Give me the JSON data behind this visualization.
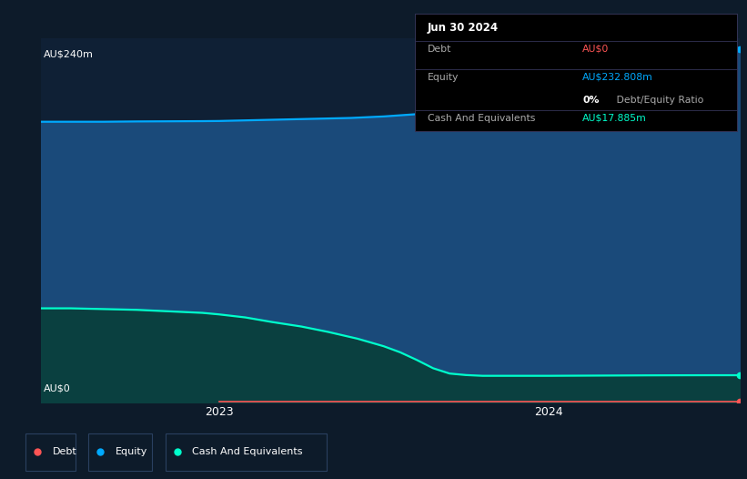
{
  "background_color": "#0d1b2a",
  "plot_bg_color": "#0f2035",
  "grid_color": "#1e3a5a",
  "equity_color": "#00aaff",
  "equity_fill": "#1a4a7a",
  "cash_color": "#00ffcc",
  "cash_fill": "#0a4040",
  "debt_color": "#ff5555",
  "ylabel_top": "AU$240m",
  "ylabel_bottom": "AU$0",
  "ylim": [
    0,
    240
  ],
  "xlim_min": 2022.46,
  "xlim_max": 2024.58,
  "x_ticks": [
    2023.0,
    2024.0
  ],
  "x_tick_labels": [
    "2023",
    "2024"
  ],
  "equity_x": [
    2022.46,
    2022.55,
    2022.65,
    2022.75,
    2022.85,
    2022.95,
    2023.0,
    2023.1,
    2023.2,
    2023.3,
    2023.4,
    2023.5,
    2023.6,
    2023.7,
    2023.75,
    2023.8,
    2023.85,
    2023.9,
    2024.0,
    2024.1,
    2024.2,
    2024.3,
    2024.4,
    2024.5,
    2024.58
  ],
  "equity_y": [
    185.0,
    185.0,
    185.0,
    185.2,
    185.3,
    185.4,
    185.5,
    186.0,
    186.5,
    187.0,
    187.5,
    188.5,
    190.0,
    192.0,
    193.5,
    196.0,
    199.0,
    203.0,
    211.0,
    218.0,
    224.0,
    228.0,
    231.0,
    232.0,
    232.808
  ],
  "cash_x": [
    2022.46,
    2022.55,
    2022.65,
    2022.75,
    2022.85,
    2022.95,
    2023.0,
    2023.08,
    2023.16,
    2023.25,
    2023.33,
    2023.42,
    2023.5,
    2023.55,
    2023.6,
    2023.65,
    2023.7,
    2023.75,
    2023.8,
    2023.85,
    2023.9,
    2024.0,
    2024.1,
    2024.2,
    2024.3,
    2024.4,
    2024.5,
    2024.58
  ],
  "cash_y": [
    62.0,
    62.0,
    61.5,
    61.0,
    60.0,
    59.0,
    58.0,
    56.0,
    53.0,
    50.0,
    46.5,
    42.0,
    37.0,
    33.0,
    28.0,
    22.5,
    19.0,
    18.0,
    17.5,
    17.5,
    17.5,
    17.5,
    17.6,
    17.7,
    17.8,
    17.85,
    17.885,
    17.885
  ],
  "debt_line_x_start": 2023.0,
  "debt_line_x_end": 2024.58,
  "debt_line_y": 0.8,
  "info_title": "Jun 30 2024",
  "info_debt_label": "Debt",
  "info_debt_value": "AU$0",
  "info_debt_color": "#ff5555",
  "info_equity_label": "Equity",
  "info_equity_value": "AU$232.808m",
  "info_equity_color": "#00aaff",
  "info_ratio_bold": "0%",
  "info_ratio_rest": " Debt/Equity Ratio",
  "info_cash_label": "Cash And Equivalents",
  "info_cash_value": "AU$17.885m",
  "info_cash_color": "#00ffcc",
  "info_label_color": "#aaaaaa",
  "info_bg": "#000000",
  "info_divider": "#333355",
  "legend_items": [
    {
      "label": "Debt",
      "color": "#ff5555"
    },
    {
      "label": "Equity",
      "color": "#00aaff"
    },
    {
      "label": "Cash And Equivalents",
      "color": "#00ffcc"
    }
  ],
  "legend_border_color": "#2a4060"
}
